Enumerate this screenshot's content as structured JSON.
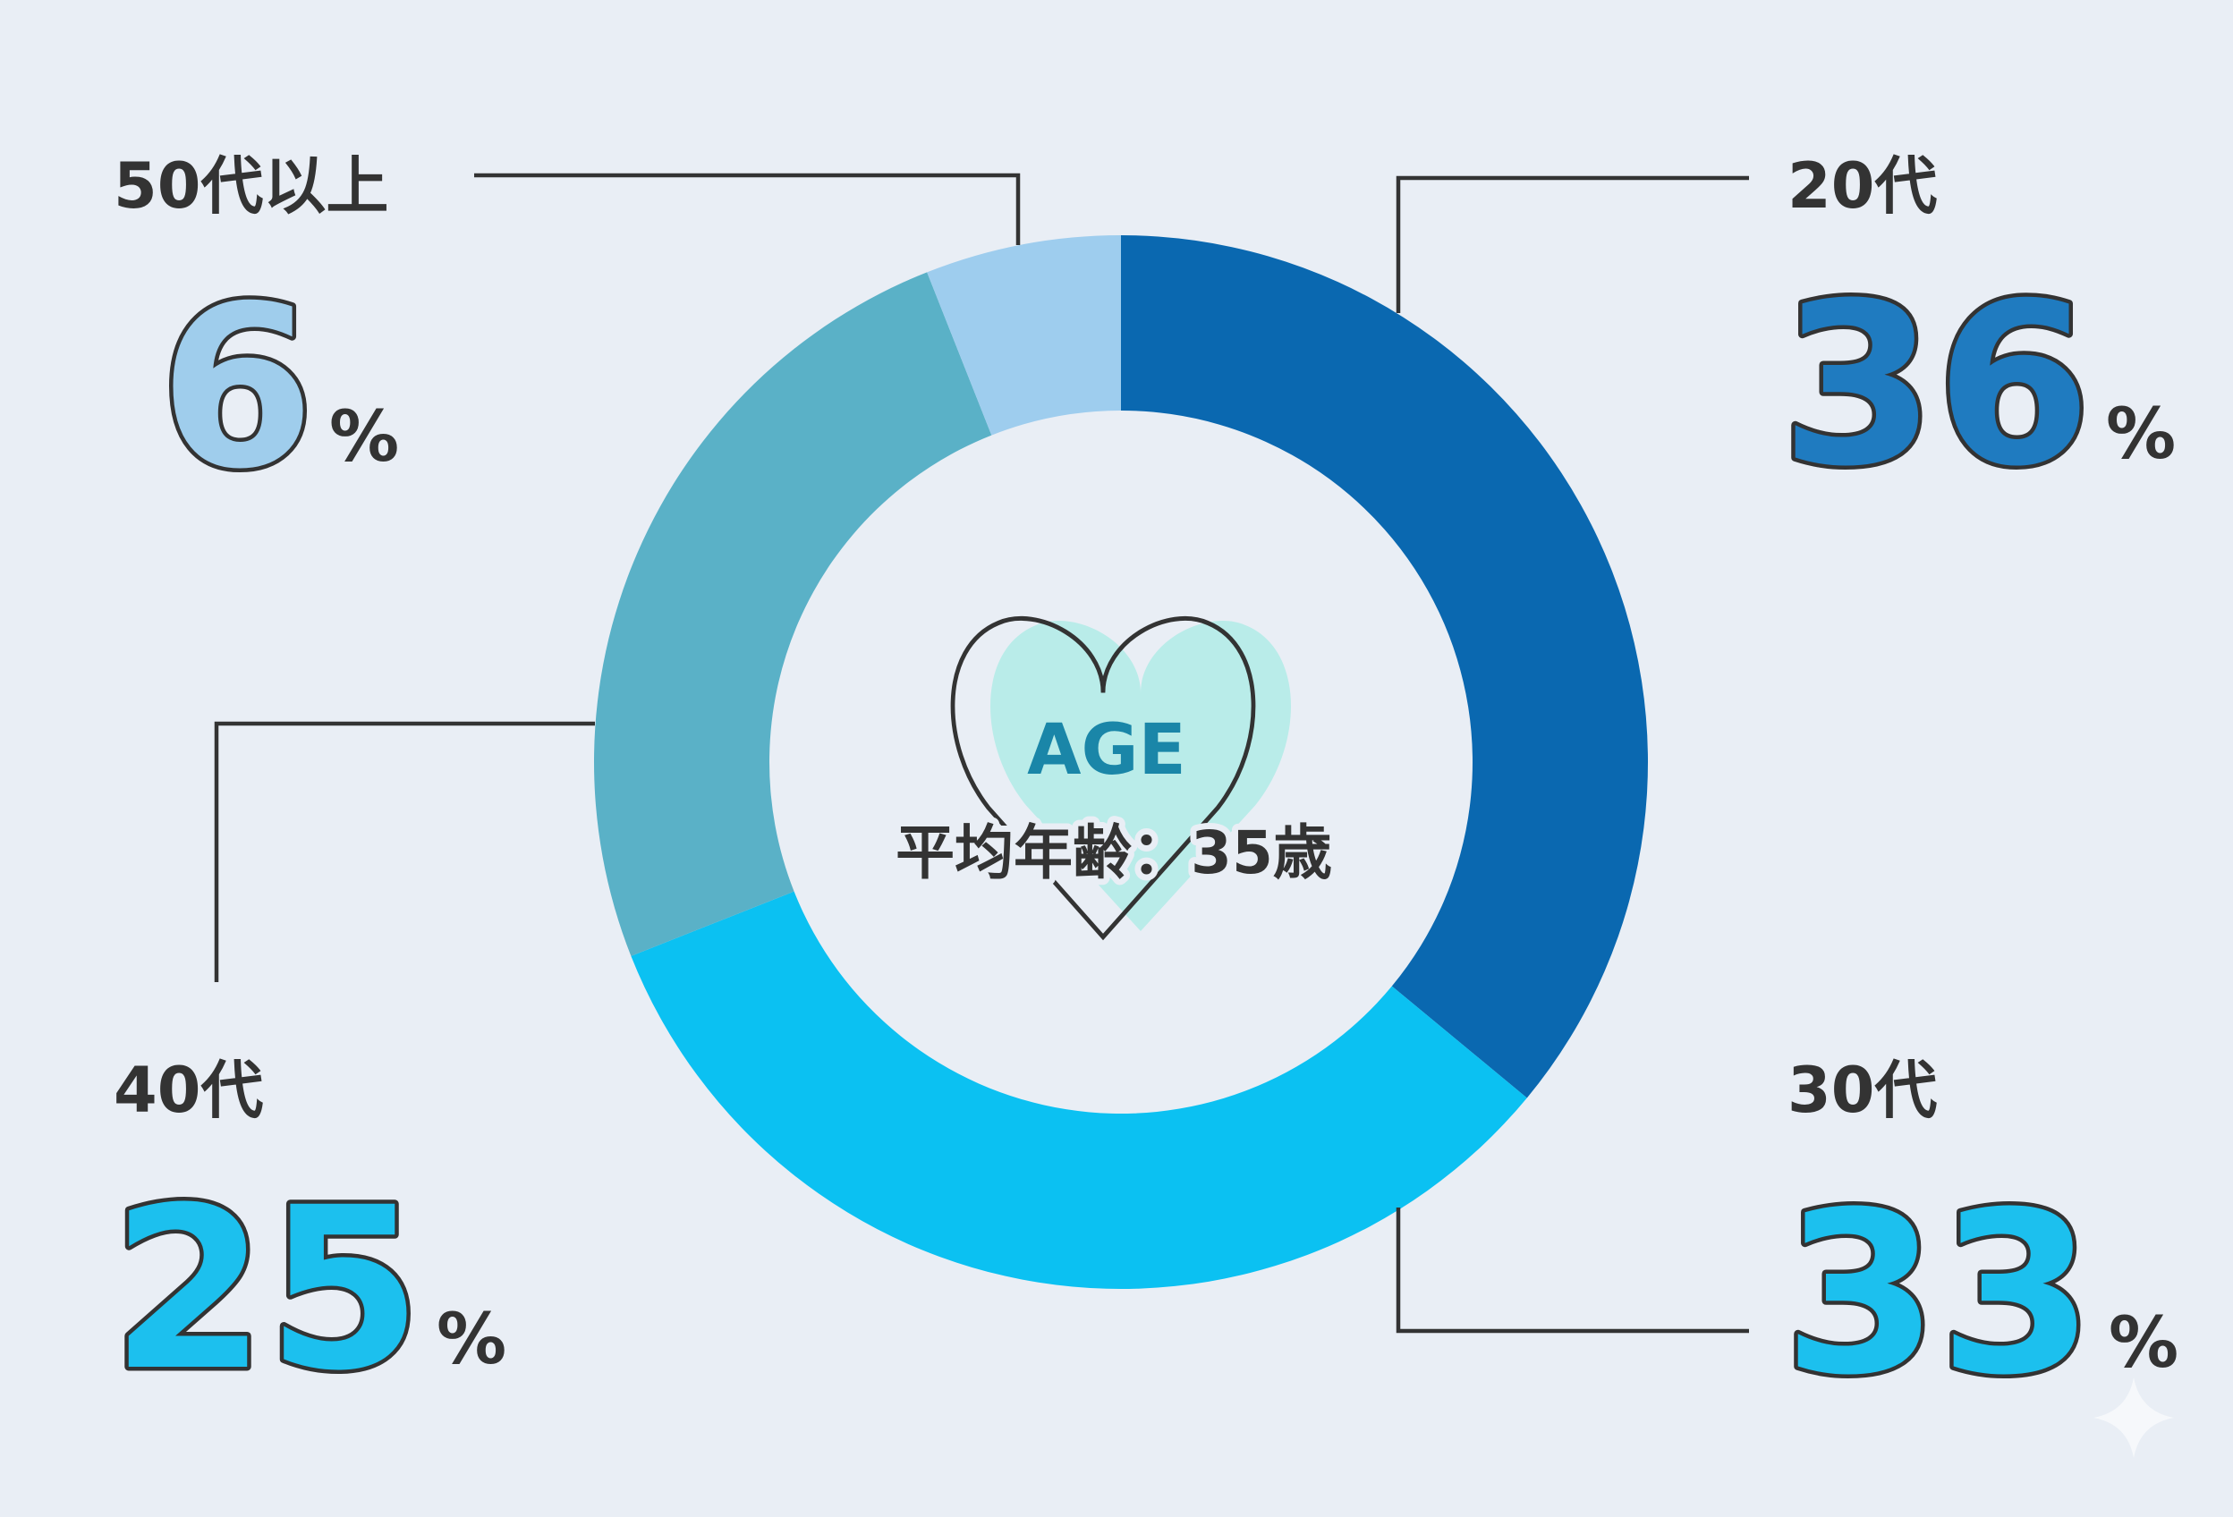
{
  "chart_data": {
    "type": "pie",
    "variant": "donut",
    "start": "top",
    "direction": "clockwise",
    "categories": [
      "20代",
      "30代",
      "40代",
      "50代以上"
    ],
    "values": [
      36,
      33,
      25,
      6
    ],
    "unit": "%",
    "colors": [
      "#0a68b0",
      "#0bc1f2",
      "#5ab1c7",
      "#9ecdee"
    ],
    "label_colors": [
      "#1f7bc0",
      "#1cc0ee",
      "#1cc0ee",
      "#9fcdec"
    ],
    "center": {
      "title": "AGE",
      "subtitle": "平均年齢：35歳",
      "icon": "heart-icon",
      "title_color": "#1a86a8",
      "heart_color": "#b9ece9"
    }
  }
}
